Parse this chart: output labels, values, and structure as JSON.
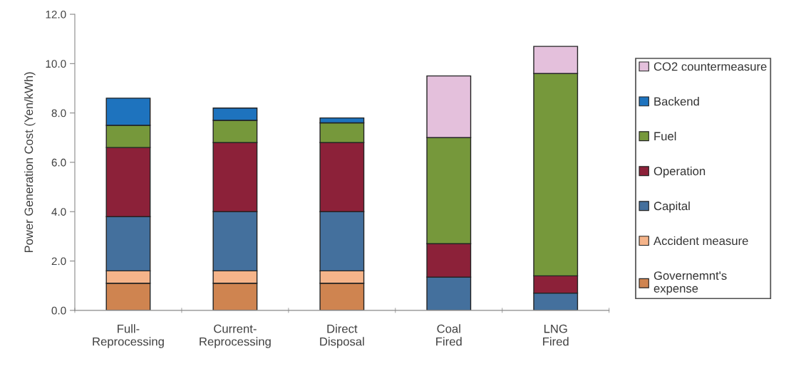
{
  "chart_data": {
    "type": "bar",
    "stacked": true,
    "ylabel": "Power Generation Cost (Yen/kWh)",
    "categories": [
      "Full-\nReprocessing",
      "Current-\nReprocessing",
      "Direct\nDisposal",
      "Coal\nFired",
      "LNG\nFired"
    ],
    "series": [
      {
        "name": "Governemnt's\nexpense",
        "color": "#cf8450",
        "values": [
          1.1,
          1.1,
          1.1,
          null,
          null
        ]
      },
      {
        "name": "Accident measure",
        "color": "#f5b48a",
        "values": [
          0.5,
          0.5,
          0.5,
          null,
          null
        ]
      },
      {
        "name": "Capital",
        "color": "#44709d",
        "values": [
          2.2,
          2.4,
          2.4,
          1.35,
          0.7
        ]
      },
      {
        "name": "Operation",
        "color": "#8c2139",
        "values": [
          2.8,
          2.8,
          2.8,
          1.35,
          0.7
        ]
      },
      {
        "name": "Fuel",
        "color": "#76983b",
        "values": [
          0.9,
          0.9,
          0.8,
          4.3,
          8.2
        ]
      },
      {
        "name": "Backend",
        "color": "#1e73be",
        "values": [
          1.1,
          0.5,
          0.2,
          null,
          null
        ]
      },
      {
        "name": "CO2 countermeasure",
        "color": "#e4c0dc",
        "values": [
          null,
          null,
          null,
          2.5,
          1.1
        ]
      }
    ],
    "ylim": [
      0,
      12
    ],
    "yticks": [
      {
        "value": 0,
        "label": "0.0"
      },
      {
        "value": 2,
        "label": "2.0"
      },
      {
        "value": 4,
        "label": "4.0"
      },
      {
        "value": 6,
        "label": "6.0"
      },
      {
        "value": 8,
        "label": "8.0"
      },
      {
        "value": 10,
        "label": "10.0"
      },
      {
        "value": 12,
        "label": "12.0"
      }
    ],
    "legend": "right"
  }
}
